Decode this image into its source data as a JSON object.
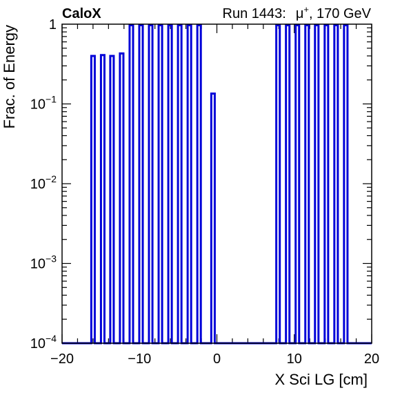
{
  "chart_data": {
    "type": "bar",
    "brand": "CaloX",
    "run_label": "Run 1443:",
    "particle": "μ",
    "particle_charge": "+",
    "energy_label": ", 170 GeV",
    "xlabel": "X Sci LG [cm]",
    "ylabel": "Frac. of Energy",
    "xlim": [
      -20,
      20
    ],
    "ylim": [
      0.0001,
      1
    ],
    "y_scale": "log",
    "x_ticks": [
      {
        "value": -20,
        "label": "−20"
      },
      {
        "value": -10,
        "label": "−10"
      },
      {
        "value": 0,
        "label": "0"
      },
      {
        "value": 10,
        "label": "10"
      },
      {
        "value": 20,
        "label": "20"
      }
    ],
    "y_ticks": [
      {
        "value": 1,
        "base": "1",
        "exp": ""
      },
      {
        "value": 0.1,
        "base": "10",
        "exp": "−1"
      },
      {
        "value": 0.01,
        "base": "10",
        "exp": "−2"
      },
      {
        "value": 0.001,
        "base": "10",
        "exp": "−3"
      },
      {
        "value": 0.0001,
        "base": "10",
        "exp": "−4"
      }
    ],
    "series_color": "#0000d8",
    "bin_width": 0.45,
    "bars": [
      {
        "x": -16.0,
        "value": 0.4
      },
      {
        "x": -14.75,
        "value": 0.41
      },
      {
        "x": -13.55,
        "value": 0.4
      },
      {
        "x": -12.3,
        "value": 0.43
      },
      {
        "x": -11.05,
        "value": 1.0
      },
      {
        "x": -9.8,
        "value": 1.0
      },
      {
        "x": -8.55,
        "value": 1.0
      },
      {
        "x": -7.3,
        "value": 1.0
      },
      {
        "x": -6.05,
        "value": 1.0
      },
      {
        "x": -4.8,
        "value": 1.0
      },
      {
        "x": -3.55,
        "value": 1.0
      },
      {
        "x": -2.3,
        "value": 1.0
      },
      {
        "x": -0.5,
        "value": 0.135
      },
      {
        "x": 7.9,
        "value": 1.0
      },
      {
        "x": 9.15,
        "value": 1.0
      },
      {
        "x": 10.4,
        "value": 1.0
      },
      {
        "x": 11.65,
        "value": 1.0
      },
      {
        "x": 12.9,
        "value": 1.0
      },
      {
        "x": 14.15,
        "value": 1.0
      },
      {
        "x": 15.4,
        "value": 1.0
      },
      {
        "x": 16.65,
        "value": 1.0
      }
    ]
  }
}
